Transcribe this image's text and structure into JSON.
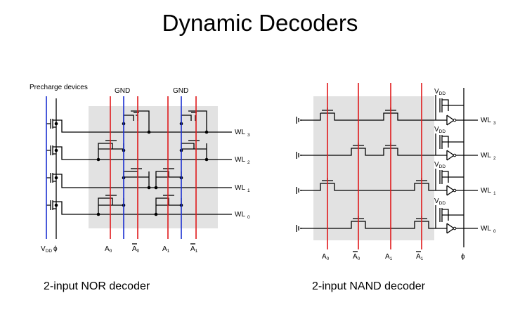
{
  "title": "Dynamic Decoders",
  "nor": {
    "caption": "2-input NOR decoder",
    "precharge_label": "Precharge devices",
    "gnd_label": "GND",
    "vdd_label": "V",
    "vdd_sub": "DD",
    "phi_label": "ϕ",
    "inputs": [
      {
        "base": "A",
        "sub": "0",
        "bar": false
      },
      {
        "base": "A",
        "sub": "0",
        "bar": true
      },
      {
        "base": "A",
        "sub": "1",
        "bar": false
      },
      {
        "base": "A",
        "sub": "1",
        "bar": true
      }
    ],
    "wordlines": [
      {
        "base": "WL",
        "sub": "3"
      },
      {
        "base": "WL",
        "sub": "2"
      },
      {
        "base": "WL",
        "sub": "1"
      },
      {
        "base": "WL",
        "sub": "0"
      }
    ]
  },
  "nand": {
    "caption": "2-input NAND decoder",
    "vdd_label": "V",
    "vdd_sub": "DD",
    "phi_label": "ϕ",
    "inputs": [
      {
        "base": "A",
        "sub": "0",
        "bar": false
      },
      {
        "base": "A",
        "sub": "0",
        "bar": true
      },
      {
        "base": "A",
        "sub": "1",
        "bar": false
      },
      {
        "base": "A",
        "sub": "1",
        "bar": true
      }
    ],
    "wordlines": [
      {
        "base": "WL",
        "sub": "3"
      },
      {
        "base": "WL",
        "sub": "2"
      },
      {
        "base": "WL",
        "sub": "1"
      },
      {
        "base": "WL",
        "sub": "0"
      }
    ]
  },
  "colors": {
    "input_line": "#e0191b",
    "supply_line": "#1a2fd0",
    "array_background": "#e2e2e2"
  }
}
